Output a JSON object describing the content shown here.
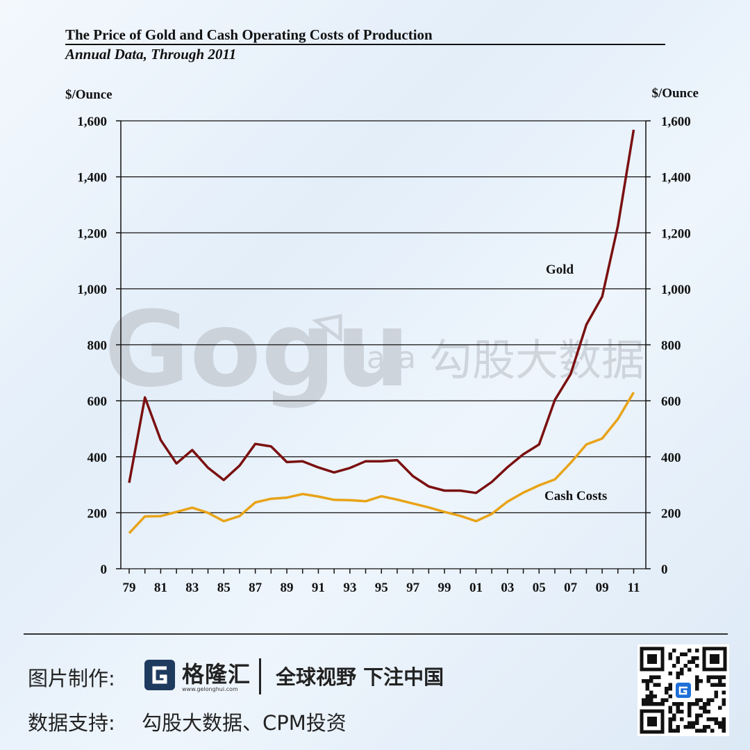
{
  "chart_data": {
    "type": "line",
    "title": "The Price of Gold and Cash Operating Costs of Production",
    "subtitle": "Annual Data, Through 2011",
    "ylabel_left": "$/Ounce",
    "ylabel_right": "$/Ounce",
    "ylim": [
      0,
      1600
    ],
    "yticks": [
      0,
      200,
      400,
      600,
      800,
      1000,
      1200,
      1400,
      1600
    ],
    "ytick_labels": [
      "0",
      "200",
      "400",
      "600",
      "800",
      "1,000",
      "1,200",
      "1,400",
      "1,600"
    ],
    "x": [
      1979,
      1980,
      1981,
      1982,
      1983,
      1984,
      1985,
      1986,
      1987,
      1988,
      1989,
      1990,
      1991,
      1992,
      1993,
      1994,
      1995,
      1996,
      1997,
      1998,
      1999,
      2000,
      2001,
      2002,
      2003,
      2004,
      2005,
      2006,
      2007,
      2008,
      2009,
      2010,
      2011
    ],
    "xtick_labels": [
      "79",
      "81",
      "83",
      "85",
      "87",
      "89",
      "91",
      "93",
      "95",
      "97",
      "99",
      "01",
      "03",
      "05",
      "07",
      "09",
      "11"
    ],
    "grid": true,
    "series": [
      {
        "name": "Gold",
        "color": "#7a1010",
        "values": [
          307,
          612,
          460,
          376,
          424,
          361,
          317,
          368,
          446,
          437,
          381,
          384,
          362,
          344,
          360,
          384,
          384,
          388,
          331,
          294,
          279,
          279,
          271,
          310,
          363,
          409,
          444,
          603,
          695,
          872,
          972,
          1225,
          1568
        ]
      },
      {
        "name": "Cash Costs",
        "color": "#e8a317",
        "values": [
          127,
          187,
          188,
          203,
          218,
          200,
          170,
          188,
          237,
          250,
          254,
          267,
          258,
          246,
          245,
          241,
          259,
          247,
          233,
          219,
          203,
          189,
          170,
          196,
          240,
          272,
          298,
          319,
          378,
          444,
          465,
          535,
          630
        ]
      }
    ]
  },
  "watermark": {
    "brand": "Gogu",
    "suffix": "data",
    "cn": "勾股大数据"
  },
  "footer": {
    "made_by_label": "图片制作:",
    "brand_name": "格隆汇",
    "brand_url": "www.gelonghui.com",
    "slogan": "全球视野 下注中国",
    "source_label": "数据支持:",
    "source_text": "勾股大数据、CPM投资"
  },
  "icons": {
    "brand_logo": "gelonghui-logo-icon",
    "qr": "qr-code-icon"
  }
}
